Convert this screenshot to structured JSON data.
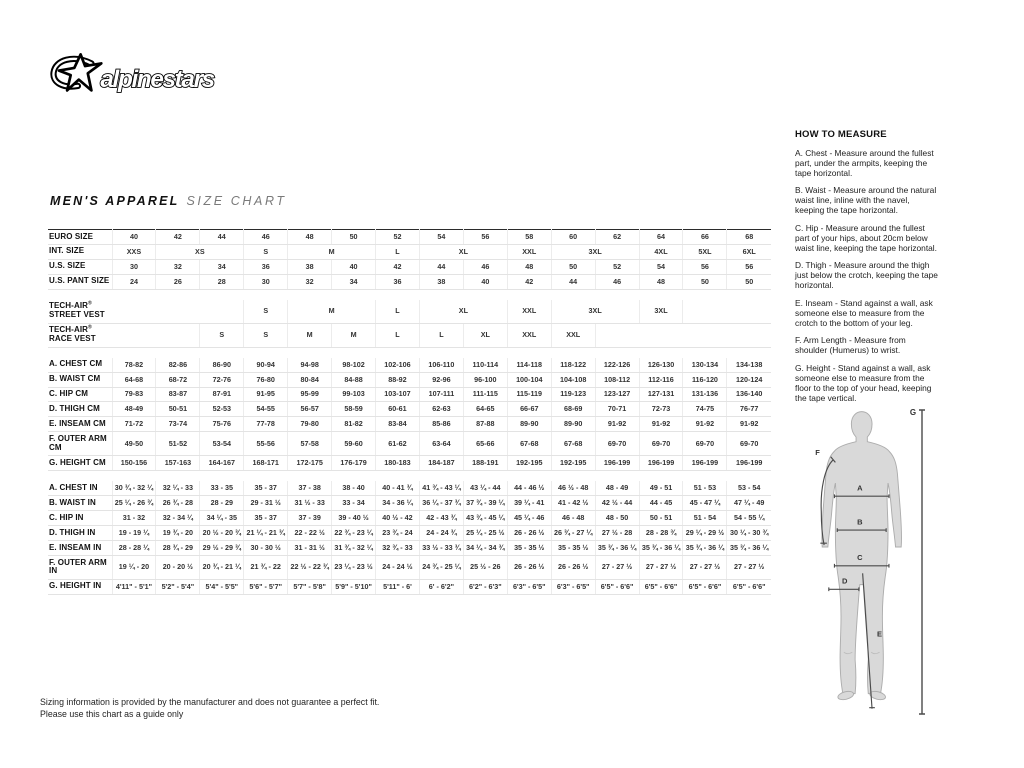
{
  "brand": {
    "logo_text": "alpinestars"
  },
  "title": {
    "bold": "MEN'S APPAREL",
    "light": "SIZE CHART"
  },
  "size_table": {
    "columns": 15,
    "rows": [
      {
        "label": "EURO SIZE",
        "cells": [
          "40",
          "42",
          "44",
          "46",
          "48",
          "50",
          "52",
          "54",
          "56",
          "58",
          "60",
          "62",
          "64",
          "66",
          "68"
        ]
      },
      {
        "label": "INT. SIZE",
        "cells": [
          [
            "XXS",
            1
          ],
          [
            "XS",
            2
          ],
          [
            "S",
            1
          ],
          [
            "M",
            2
          ],
          [
            "L",
            1
          ],
          [
            "XL",
            2
          ],
          [
            "XXL",
            1
          ],
          [
            "3XL",
            2
          ],
          [
            "4XL",
            1
          ],
          [
            "5XL",
            1
          ],
          [
            "6XL",
            1
          ]
        ]
      },
      {
        "label": "U.S. SIZE",
        "cells": [
          "30",
          "32",
          "34",
          "36",
          "38",
          "40",
          "42",
          "44",
          "46",
          "48",
          "50",
          "52",
          "54",
          "56",
          "56"
        ]
      },
      {
        "label": "U.S. PANT SIZE",
        "cells": [
          "24",
          "26",
          "28",
          "30",
          "32",
          "34",
          "36",
          "38",
          "40",
          "42",
          "44",
          "46",
          "48",
          "50",
          "50"
        ]
      },
      {
        "gap": true
      },
      {
        "label": "TECH-AIR® STREET VEST",
        "cells": [
          [
            "",
            3
          ],
          [
            "S",
            1
          ],
          [
            "M",
            2
          ],
          [
            "L",
            1
          ],
          [
            "XL",
            2
          ],
          [
            "XXL",
            1
          ],
          [
            "3XL",
            2
          ],
          [
            "3XL",
            1
          ],
          [
            "",
            2
          ]
        ]
      },
      {
        "label": "TECH-AIR® RACE VEST",
        "cells": [
          [
            "",
            2
          ],
          [
            "S",
            1
          ],
          [
            "S",
            1
          ],
          [
            "M",
            1
          ],
          [
            "M",
            1
          ],
          [
            "L",
            1
          ],
          [
            "L",
            1
          ],
          [
            "XL",
            1
          ],
          [
            "XXL",
            1
          ],
          [
            "XXL",
            1
          ],
          [
            "",
            4
          ]
        ]
      },
      {
        "gap": true
      },
      {
        "label": "A. CHEST CM",
        "cells": [
          "78-82",
          "82-86",
          "86-90",
          "90-94",
          "94-98",
          "98-102",
          "102-106",
          "106-110",
          "110-114",
          "114-118",
          "118-122",
          "122-126",
          "126-130",
          "130-134",
          "134-138"
        ]
      },
      {
        "label": "B. WAIST CM",
        "cells": [
          "64-68",
          "68-72",
          "72-76",
          "76-80",
          "80-84",
          "84-88",
          "88-92",
          "92-96",
          "96-100",
          "100-104",
          "104-108",
          "108-112",
          "112-116",
          "116-120",
          "120-124"
        ]
      },
      {
        "label": "C. HIP CM",
        "cells": [
          "79-83",
          "83-87",
          "87-91",
          "91-95",
          "95-99",
          "99-103",
          "103-107",
          "107-111",
          "111-115",
          "115-119",
          "119-123",
          "123-127",
          "127-131",
          "131-136",
          "136-140"
        ]
      },
      {
        "label": "D. THIGH CM",
        "cells": [
          "48-49",
          "50-51",
          "52-53",
          "54-55",
          "56-57",
          "58-59",
          "60-61",
          "62-63",
          "64-65",
          "66-67",
          "68-69",
          "70-71",
          "72-73",
          "74-75",
          "76-77"
        ]
      },
      {
        "label": "E. INSEAM CM",
        "cells": [
          "71-72",
          "73-74",
          "75-76",
          "77-78",
          "79-80",
          "81-82",
          "83-84",
          "85-86",
          "87-88",
          "89-90",
          "89-90",
          "91-92",
          "91-92",
          "91-92",
          "91-92"
        ]
      },
      {
        "label": "F. OUTER ARM CM",
        "cells": [
          "49-50",
          "51-52",
          "53-54",
          "55-56",
          "57-58",
          "59-60",
          "61-62",
          "63-64",
          "65-66",
          "67-68",
          "67-68",
          "69-70",
          "69-70",
          "69-70",
          "69-70"
        ]
      },
      {
        "label": "G. HEIGHT CM",
        "cells": [
          "150-156",
          "157-163",
          "164-167",
          "168-171",
          "172-175",
          "176-179",
          "180-183",
          "184-187",
          "188-191",
          "192-195",
          "192-195",
          "196-199",
          "196-199",
          "196-199",
          "196-199"
        ]
      },
      {
        "gap": true
      },
      {
        "label": "A. CHEST IN",
        "cells": [
          "30 ¾ - 32 ¼",
          "32 ¼ - 33",
          "33 - 35",
          "35 - 37",
          "37 - 38",
          "38 - 40",
          "40 - 41 ¾",
          "41 ¾ - 43 ¼",
          "43 ¼ - 44",
          "44 - 46 ½",
          "46 ½ - 48",
          "48 - 49",
          "49 - 51",
          "51 - 53",
          "53 - 54"
        ]
      },
      {
        "label": "B. WAIST IN",
        "cells": [
          "25 ¼ - 26 ¾",
          "26 ¾ - 28",
          "28 - 29",
          "29 - 31 ½",
          "31 ½ - 33",
          "33 - 34",
          "34 - 36 ¼",
          "36 ¼ - 37 ¾",
          "37 ¾ - 39 ¼",
          "39 ¼ - 41",
          "41 - 42 ½",
          "42 ½ - 44",
          "44 - 45",
          "45 - 47 ¼",
          "47 ¼ - 49"
        ]
      },
      {
        "label": "C. HIP IN",
        "cells": [
          "31 - 32",
          "32 - 34 ¼",
          "34 ¼ - 35",
          "35 - 37",
          "37 - 39",
          "39 - 40 ½",
          "40 ½ - 42",
          "42 - 43 ¾",
          "43 ¾ - 45 ¼",
          "45 ¼ - 46",
          "46 - 48",
          "48 - 50",
          "50 - 51",
          "51 - 54",
          "54 - 55 ¼"
        ]
      },
      {
        "label": "D. THIGH IN",
        "cells": [
          "19 - 19 ¼",
          "19 ¾ - 20",
          "20 ½ - 20 ¾",
          "21 ¼ - 21 ¾",
          "22 - 22 ½",
          "22 ¾ - 23 ¼",
          "23 ¾ - 24",
          "24 - 24 ¾",
          "25 ¼ - 25 ½",
          "26 - 26 ½",
          "26 ¾ - 27 ¼",
          "27 ½ - 28",
          "28 - 28 ¾",
          "29 ¼ - 29 ½",
          "30 ¼ - 30 ¾"
        ]
      },
      {
        "label": "E. INSEAM IN",
        "cells": [
          "28 - 28 ¼",
          "28 ¾ - 29",
          "29 ½ - 29 ¾",
          "30 - 30 ½",
          "31 - 31 ½",
          "31 ¾ - 32 ¼",
          "32 ¾ - 33",
          "33 ½ - 33 ¾",
          "34 ¼ - 34 ¾",
          "35 - 35 ½",
          "35 - 35 ½",
          "35 ¾ - 36 ¼",
          "35 ¾ - 36 ¼",
          "35 ¾ - 36 ¼",
          "35 ¾ - 36 ¼"
        ]
      },
      {
        "label": "F. OUTER ARM IN",
        "cells": [
          "19 ¼ - 20",
          "20 - 20 ½",
          "20 ¾ - 21 ¼",
          "21 ¾ - 22",
          "22 ½ - 22 ¾",
          "23 ¼ - 23 ½",
          "24 - 24 ½",
          "24 ¾ - 25 ¼",
          "25 ½ - 26",
          "26 - 26 ½",
          "26 - 26 ½",
          "27 - 27 ½",
          "27 - 27 ½",
          "27 - 27 ½",
          "27 - 27 ½"
        ]
      },
      {
        "label": "G. HEIGHT IN",
        "cells": [
          "4'11\" - 5'1\"",
          "5'2\" - 5'4\"",
          "5'4\" - 5'5\"",
          "5'6\" - 5'7\"",
          "5'7\" - 5'8\"",
          "5'9\" - 5'10\"",
          "5'11\" - 6'",
          "6' - 6'2\"",
          "6'2\" - 6'3\"",
          "6'3\" - 6'5\"",
          "6'3\" - 6'5\"",
          "6'5\" - 6'6\"",
          "6'5\" - 6'6\"",
          "6'5\" - 6'6\"",
          "6'5\" - 6'6\""
        ]
      }
    ]
  },
  "how_to_measure": {
    "title": "HOW TO MEASURE",
    "items": [
      "A. Chest - Measure around the fullest part, under the armpits, keeping the tape horizontal.",
      "B. Waist - Measure around the natural waist line, inline with the navel, keeping the tape horizontal.",
      "C. Hip - Measure around the fullest part of your hips, about 20cm below waist line, keeping the tape horizontal.",
      "D. Thigh - Measure around the thigh just below the crotch, keeping the tape horizontal.",
      "E. Inseam - Stand against a wall, ask someone else to measure from the crotch to the bottom of your leg.",
      "F. Arm Length - Measure from shoulder (Humerus) to wrist.",
      "G. Height - Stand against a wall, ask someone else to measure from the floor to the top of your head, keeping the tape vertical."
    ]
  },
  "figure": {
    "labels": [
      "A",
      "B",
      "C",
      "D",
      "E",
      "F",
      "G"
    ]
  },
  "footer": {
    "line1": "Sizing information is provided by the manufacturer and does not guarantee a perfect fit.",
    "line2": "Please use this chart as a guide only"
  }
}
